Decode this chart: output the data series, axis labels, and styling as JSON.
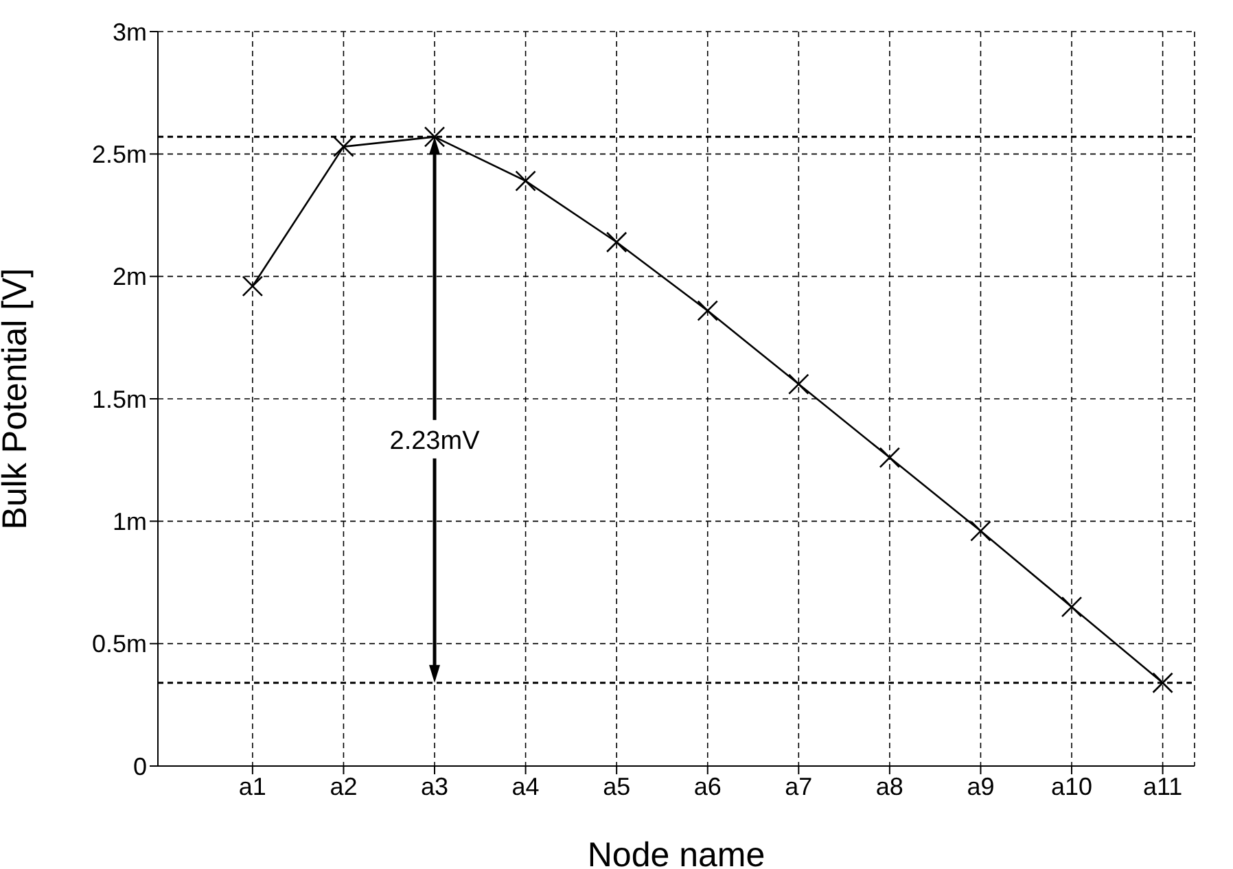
{
  "chart_data": {
    "type": "line",
    "xlabel": "Node name",
    "ylabel": "Bulk Potential [V]",
    "categories": [
      "a1",
      "a2",
      "a3",
      "a4",
      "a5",
      "a6",
      "a7",
      "a8",
      "a9",
      "a10",
      "a11"
    ],
    "series": [
      {
        "color": "#000000",
        "values": [
          1.96,
          2.53,
          2.57,
          2.39,
          2.14,
          1.86,
          1.56,
          1.26,
          0.96,
          0.65,
          0.34
        ]
      }
    ],
    "ylim": [
      0,
      3
    ],
    "yticks": [
      0,
      {
        "value": 0.5,
        "label": "0.5m"
      },
      {
        "value": 1,
        "label": "1m"
      },
      {
        "value": 1.5,
        "label": "1.5m"
      },
      {
        "value": 2,
        "label": "2m"
      },
      {
        "value": 2.5,
        "label": "2.5m"
      },
      {
        "value": 3,
        "label": "3m"
      }
    ],
    "ref_lines": [
      {
        "axis": "y",
        "value": 2.57,
        "color": "#000000",
        "line_style": "dashed"
      },
      {
        "axis": "y",
        "value": 0.34,
        "color": "#000000",
        "line_style": "dashed"
      }
    ],
    "annotations": [
      "2.23mV"
    ],
    "grid": true,
    "marker": "cross",
    "line_style": "solid",
    "legend": false
  }
}
